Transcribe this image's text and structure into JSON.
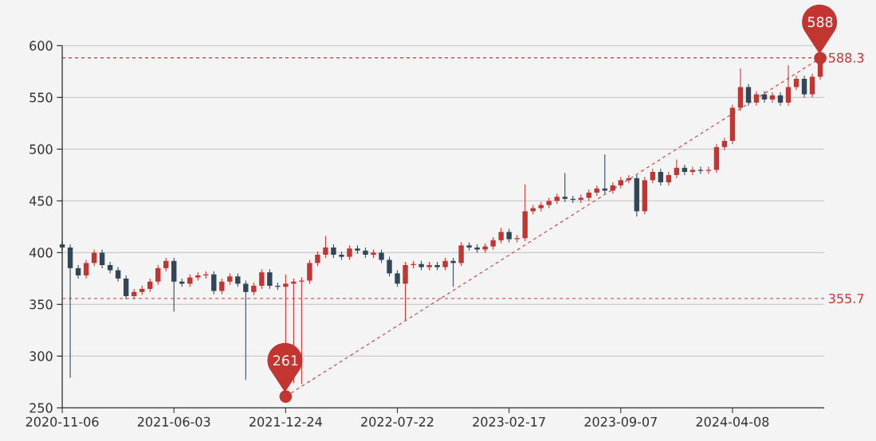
{
  "chart_data": {
    "type": "candlestick",
    "categories": [
      "2020-11-06",
      null,
      null,
      null,
      null,
      null,
      null,
      null,
      null,
      null,
      null,
      null,
      null,
      null,
      "2021-06-03",
      null,
      null,
      null,
      null,
      null,
      null,
      null,
      null,
      null,
      null,
      null,
      null,
      null,
      "2021-12-24",
      null,
      null,
      null,
      null,
      null,
      null,
      null,
      null,
      null,
      null,
      null,
      null,
      null,
      "2022-07-22",
      null,
      null,
      null,
      null,
      null,
      null,
      null,
      null,
      null,
      null,
      null,
      null,
      null,
      "2023-02-17",
      null,
      null,
      null,
      null,
      null,
      null,
      null,
      null,
      null,
      null,
      null,
      null,
      null,
      "2023-09-07",
      null,
      null,
      null,
      null,
      null,
      null,
      null,
      null,
      null,
      null,
      null,
      null,
      null,
      "2024-04-08",
      null,
      null,
      null,
      null,
      null,
      null,
      null,
      null,
      null,
      null,
      null
    ],
    "ohlc": [
      [
        408,
        411,
        402,
        405
      ],
      [
        405,
        408,
        279,
        385
      ],
      [
        385,
        388,
        375,
        378
      ],
      [
        378,
        393,
        375,
        390
      ],
      [
        390,
        403,
        387,
        400
      ],
      [
        400,
        403,
        385,
        388
      ],
      [
        388,
        391,
        380,
        383
      ],
      [
        383,
        386,
        372,
        375
      ],
      [
        375,
        378,
        355,
        358
      ],
      [
        358,
        365,
        355,
        362
      ],
      [
        362,
        368,
        359,
        365
      ],
      [
        365,
        375,
        362,
        372
      ],
      [
        372,
        388,
        369,
        385
      ],
      [
        385,
        395,
        382,
        392
      ],
      [
        392,
        395,
        343,
        372
      ],
      [
        372,
        375,
        367,
        370
      ],
      [
        370,
        379,
        367,
        376
      ],
      [
        376,
        381,
        373,
        378
      ],
      [
        378,
        382,
        375,
        379
      ],
      [
        379,
        382,
        360,
        363
      ],
      [
        363,
        375,
        360,
        372
      ],
      [
        372,
        380,
        369,
        377
      ],
      [
        377,
        380,
        367,
        370
      ],
      [
        370,
        373,
        277,
        362
      ],
      [
        362,
        371,
        359,
        368
      ],
      [
        368,
        384,
        365,
        381
      ],
      [
        381,
        384,
        365,
        368
      ],
      [
        368,
        371,
        364,
        367
      ],
      [
        367,
        379,
        261,
        370
      ],
      [
        370,
        375,
        274,
        372
      ],
      [
        372,
        376,
        273,
        373
      ],
      [
        373,
        393,
        370,
        390
      ],
      [
        390,
        401,
        387,
        398
      ],
      [
        398,
        416,
        395,
        405
      ],
      [
        405,
        408,
        395,
        398
      ],
      [
        398,
        401,
        393,
        396
      ],
      [
        396,
        407,
        393,
        404
      ],
      [
        404,
        407,
        399,
        402
      ],
      [
        402,
        405,
        395,
        398
      ],
      [
        398,
        403,
        395,
        400
      ],
      [
        400,
        403,
        390,
        393
      ],
      [
        393,
        396,
        377,
        380
      ],
      [
        380,
        383,
        367,
        370
      ],
      [
        370,
        391,
        335,
        388
      ],
      [
        388,
        392,
        385,
        389
      ],
      [
        389,
        392,
        383,
        386
      ],
      [
        386,
        391,
        383,
        388
      ],
      [
        388,
        391,
        383,
        386
      ],
      [
        386,
        395,
        383,
        392
      ],
      [
        392,
        395,
        367,
        390
      ],
      [
        390,
        410,
        387,
        407
      ],
      [
        407,
        410,
        402,
        405
      ],
      [
        405,
        408,
        400,
        403
      ],
      [
        403,
        409,
        400,
        406
      ],
      [
        406,
        415,
        403,
        412
      ],
      [
        412,
        424,
        409,
        420
      ],
      [
        420,
        423,
        410,
        413
      ],
      [
        413,
        417,
        410,
        414
      ],
      [
        414,
        466,
        411,
        440
      ],
      [
        440,
        446,
        437,
        443
      ],
      [
        443,
        449,
        440,
        446
      ],
      [
        446,
        453,
        443,
        450
      ],
      [
        450,
        457,
        447,
        454
      ],
      [
        454,
        477,
        449,
        452
      ],
      [
        452,
        455,
        448,
        451
      ],
      [
        451,
        456,
        448,
        453
      ],
      [
        453,
        461,
        450,
        458
      ],
      [
        458,
        465,
        455,
        462
      ],
      [
        462,
        495,
        457,
        460
      ],
      [
        460,
        468,
        457,
        465
      ],
      [
        465,
        473,
        462,
        470
      ],
      [
        470,
        475,
        467,
        472
      ],
      [
        472,
        475,
        435,
        440
      ],
      [
        440,
        473,
        437,
        470
      ],
      [
        470,
        481,
        467,
        478
      ],
      [
        478,
        481,
        465,
        468
      ],
      [
        468,
        478,
        465,
        475
      ],
      [
        475,
        490,
        472,
        482
      ],
      [
        482,
        485,
        475,
        478
      ],
      [
        478,
        483,
        475,
        480
      ],
      [
        480,
        483,
        476,
        479
      ],
      [
        479,
        483,
        476,
        480
      ],
      [
        480,
        505,
        477,
        502
      ],
      [
        502,
        511,
        499,
        508
      ],
      [
        508,
        543,
        505,
        540
      ],
      [
        540,
        578,
        537,
        560
      ],
      [
        560,
        563,
        542,
        545
      ],
      [
        545,
        556,
        542,
        553
      ],
      [
        553,
        556,
        545,
        548
      ],
      [
        548,
        555,
        545,
        552
      ],
      [
        552,
        555,
        542,
        545
      ],
      [
        545,
        581,
        542,
        560
      ],
      [
        560,
        571,
        557,
        568
      ],
      [
        568,
        571,
        550,
        553
      ],
      [
        553,
        573,
        550,
        570
      ],
      [
        570,
        588,
        567,
        585
      ]
    ],
    "colors": [
      "#314656",
      "#314656",
      "#314656",
      "#c23531",
      "#c23531",
      "#314656",
      "#314656",
      "#314656",
      "#314656",
      "#c23531",
      "#c23531",
      "#c23531",
      "#c23531",
      "#c23531",
      "#314656",
      "#314656",
      "#c23531",
      "#c23531",
      "#c23531",
      "#314656",
      "#c23531",
      "#c23531",
      "#314656",
      "#314656",
      "#c23531",
      "#c23531",
      "#314656",
      "#314656",
      "#c23531",
      "#c23531",
      "#c23531",
      "#c23531",
      "#c23531",
      "#c23531",
      "#314656",
      "#314656",
      "#c23531",
      "#314656",
      "#314656",
      "#c23531",
      "#314656",
      "#314656",
      "#314656",
      "#c23531",
      "#c23531",
      "#314656",
      "#c23531",
      "#314656",
      "#c23531",
      "#314656",
      "#c23531",
      "#314656",
      "#314656",
      "#c23531",
      "#c23531",
      "#c23531",
      "#314656",
      "#c23531",
      "#c23531",
      "#c23531",
      "#c23531",
      "#c23531",
      "#c23531",
      "#314656",
      "#314656",
      "#c23531",
      "#c23531",
      "#c23531",
      "#314656",
      "#c23531",
      "#c23531",
      "#c23531",
      "#314656",
      "#c23531",
      "#c23531",
      "#314656",
      "#c23531",
      "#c23531",
      "#314656",
      "#c23531",
      "#314656",
      "#c23531",
      "#c23531",
      "#c23531",
      "#c23531",
      "#c23531",
      "#314656",
      "#c23531",
      "#314656",
      "#c23531",
      "#314656",
      "#c23531",
      "#c23531",
      "#314656",
      "#c23531",
      "#c23531"
    ],
    "series": [
      {
        "type": "line",
        "color": "#c23531",
        "line_style": "dashed",
        "marker": "circle",
        "values": [
          null,
          null,
          null,
          null,
          null,
          null,
          null,
          null,
          null,
          null,
          null,
          null,
          null,
          null,
          null,
          null,
          null,
          null,
          null,
          null,
          null,
          null,
          null,
          null,
          null,
          null,
          null,
          null,
          261,
          null,
          null,
          null,
          null,
          null,
          null,
          null,
          null,
          null,
          null,
          null,
          null,
          null,
          null,
          null,
          null,
          null,
          null,
          null,
          null,
          null,
          null,
          null,
          null,
          null,
          null,
          null,
          null,
          null,
          null,
          null,
          null,
          null,
          null,
          null,
          null,
          null,
          null,
          null,
          null,
          null,
          null,
          null,
          null,
          null,
          null,
          null,
          null,
          null,
          null,
          null,
          null,
          null,
          null,
          null,
          null,
          null,
          null,
          null,
          null,
          null,
          null,
          null,
          null,
          null,
          null,
          588
        ]
      }
    ],
    "ylim": [
      250,
      600
    ],
    "yticks": [
      250,
      300,
      350,
      400,
      450,
      500,
      550,
      600
    ],
    "grid": "y",
    "ref_lines": [
      {
        "axis": "y",
        "value": 588.3,
        "label": "588.3",
        "color": "#c23531",
        "line_style": "dashed"
      },
      {
        "axis": "y",
        "value": 355.7,
        "label": "355.7",
        "color": "#c23531",
        "line_style": "dashed"
      }
    ],
    "annotations": [
      {
        "text": "261",
        "x": "2021-12-24",
        "y": 261
      },
      {
        "text": "588",
        "y": 588
      }
    ]
  }
}
